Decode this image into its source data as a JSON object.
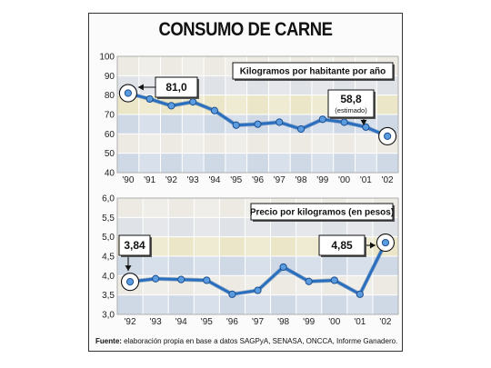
{
  "figure": {
    "title": "CONSUMO DE CARNE",
    "source_label": "Fuente:",
    "source_text": " elaboración propia en base a datos SAGPyA, SENASA, ONCCA, Informe Ganadero."
  },
  "colors": {
    "line": "#2a6fbf",
    "marker": "#5b9be0",
    "grid_light_1": "#eceae3",
    "grid_light_2": "#dfe2e6",
    "grid_blue": "#cfd9e6",
    "grid_yellow": "#ece6c8"
  },
  "chart_data": [
    {
      "type": "line",
      "title": "Kilogramos por habitante por año",
      "categories": [
        "'90",
        "'91",
        "'92",
        "'93",
        "'94",
        "'95",
        "'96",
        "'97",
        "'98",
        "'99",
        "'00",
        "'01",
        "'02"
      ],
      "values": [
        81.0,
        78.0,
        74.5,
        76.5,
        72.0,
        64.5,
        65.0,
        66.0,
        62.5,
        67.5,
        66.0,
        63.5,
        58.8
      ],
      "ylim": [
        40,
        100
      ],
      "yticks": [
        "40",
        "50",
        "60",
        "70",
        "80",
        "90",
        "100"
      ],
      "annotations": [
        {
          "label": "81,0",
          "index": 0
        },
        {
          "label": "58,8",
          "sublabel": "(estimado)",
          "index": 12
        }
      ],
      "grid": true
    },
    {
      "type": "line",
      "title": "Precio por kilogramos (en pesos)",
      "categories": [
        "'92",
        "'93",
        "'94",
        "'95",
        "'96",
        "'97",
        "'98",
        "'99",
        "'00",
        "'01",
        "'02"
      ],
      "values": [
        3.84,
        3.92,
        3.9,
        3.88,
        3.52,
        3.62,
        4.22,
        3.85,
        3.88,
        3.52,
        4.85
      ],
      "ylim": [
        3.0,
        6.0
      ],
      "yticks": [
        "3,0",
        "3,5",
        "4,0",
        "4,5",
        "5,0",
        "5,5",
        "6,0"
      ],
      "annotations": [
        {
          "label": "3,84",
          "index": 0
        },
        {
          "label": "4,85",
          "index": 10
        }
      ],
      "grid": true
    }
  ]
}
